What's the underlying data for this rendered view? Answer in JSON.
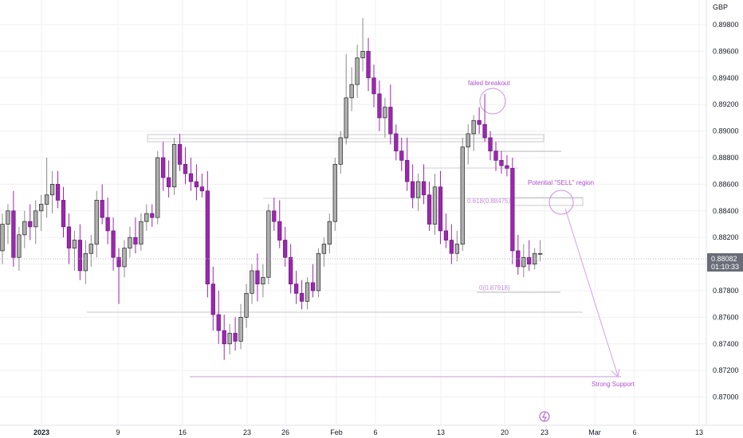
{
  "chart_data": {
    "type": "candlestick",
    "currency": "GBP",
    "ylim": [
      0.8693,
      0.9003
    ],
    "y_ticks": [
      "0.89800",
      "0.89600",
      "0.89400",
      "0.89200",
      "0.89000",
      "0.88800",
      "0.88600",
      "0.88400",
      "0.88200",
      "0.88000",
      "0.87800",
      "0.87600",
      "0.87400",
      "0.87200",
      "0.87000"
    ],
    "x_ticks": [
      "2023",
      "9",
      "16",
      "23",
      "26",
      "Feb",
      "6",
      "13",
      "20",
      "23",
      "Mar",
      "6",
      "13"
    ],
    "last_price": "0.88082",
    "countdown": "01:10:33",
    "colors": {
      "up": "#b0b0b0",
      "down": "#9c27b0",
      "annotation": "#b24fcf",
      "grid": "#f0f0f3"
    },
    "candles": [
      [
        0.881,
        0.8838,
        0.88,
        0.883
      ],
      [
        0.883,
        0.8845,
        0.8815,
        0.884
      ],
      [
        0.884,
        0.8855,
        0.8798,
        0.8805
      ],
      [
        0.8805,
        0.8828,
        0.8795,
        0.8822
      ],
      [
        0.8822,
        0.884,
        0.8812,
        0.8832
      ],
      [
        0.8832,
        0.8845,
        0.8818,
        0.8828
      ],
      [
        0.8828,
        0.8848,
        0.8815,
        0.884
      ],
      [
        0.884,
        0.8852,
        0.8825,
        0.8845
      ],
      [
        0.8845,
        0.888,
        0.8835,
        0.8852
      ],
      [
        0.8852,
        0.887,
        0.8838,
        0.886
      ],
      [
        0.886,
        0.887,
        0.8842,
        0.8848
      ],
      [
        0.8848,
        0.8858,
        0.882,
        0.8828
      ],
      [
        0.8828,
        0.8838,
        0.88,
        0.8812
      ],
      [
        0.8812,
        0.8825,
        0.8795,
        0.8818
      ],
      [
        0.8818,
        0.883,
        0.8788,
        0.8795
      ],
      [
        0.8795,
        0.8818,
        0.8785,
        0.8808
      ],
      [
        0.8808,
        0.8822,
        0.8798,
        0.8815
      ],
      [
        0.8815,
        0.8855,
        0.8805,
        0.8848
      ],
      [
        0.8848,
        0.886,
        0.883,
        0.8835
      ],
      [
        0.8835,
        0.885,
        0.8815,
        0.8825
      ],
      [
        0.8825,
        0.8835,
        0.8795,
        0.8805
      ],
      [
        0.8805,
        0.8812,
        0.877,
        0.8798
      ],
      [
        0.8798,
        0.8818,
        0.879,
        0.8812
      ],
      [
        0.8812,
        0.8828,
        0.8805,
        0.882
      ],
      [
        0.882,
        0.8835,
        0.8808,
        0.8815
      ],
      [
        0.8815,
        0.8838,
        0.881,
        0.8832
      ],
      [
        0.8832,
        0.8845,
        0.8825,
        0.8838
      ],
      [
        0.8838,
        0.8845,
        0.8828,
        0.8835
      ],
      [
        0.8835,
        0.8885,
        0.883,
        0.888
      ],
      [
        0.888,
        0.8892,
        0.8855,
        0.8865
      ],
      [
        0.8865,
        0.8878,
        0.885,
        0.8858
      ],
      [
        0.8858,
        0.8895,
        0.8852,
        0.889
      ],
      [
        0.889,
        0.8898,
        0.887,
        0.8875
      ],
      [
        0.8875,
        0.8888,
        0.886,
        0.8868
      ],
      [
        0.8868,
        0.888,
        0.8855,
        0.8862
      ],
      [
        0.8862,
        0.8875,
        0.8848,
        0.8858
      ],
      [
        0.8858,
        0.8868,
        0.885,
        0.8855
      ],
      [
        0.8855,
        0.887,
        0.8775,
        0.8785
      ],
      [
        0.8785,
        0.8798,
        0.875,
        0.8762
      ],
      [
        0.8762,
        0.878,
        0.874,
        0.875
      ],
      [
        0.875,
        0.8762,
        0.8728,
        0.874
      ],
      [
        0.874,
        0.8755,
        0.8732,
        0.8748
      ],
      [
        0.8748,
        0.876,
        0.8735,
        0.8742
      ],
      [
        0.8742,
        0.877,
        0.8736,
        0.876
      ],
      [
        0.876,
        0.8785,
        0.8752,
        0.8778
      ],
      [
        0.8778,
        0.88,
        0.877,
        0.8795
      ],
      [
        0.8795,
        0.8808,
        0.8772,
        0.8785
      ],
      [
        0.8785,
        0.88,
        0.8775,
        0.879
      ],
      [
        0.879,
        0.8845,
        0.8785,
        0.884
      ],
      [
        0.884,
        0.885,
        0.8825,
        0.8832
      ],
      [
        0.8832,
        0.8848,
        0.8812,
        0.8818
      ],
      [
        0.8818,
        0.8828,
        0.8798,
        0.8805
      ],
      [
        0.8805,
        0.8815,
        0.8778,
        0.8785
      ],
      [
        0.8785,
        0.8795,
        0.877,
        0.8778
      ],
      [
        0.8778,
        0.8788,
        0.8766,
        0.8772
      ],
      [
        0.8772,
        0.879,
        0.8766,
        0.8786
      ],
      [
        0.8786,
        0.88,
        0.8775,
        0.878
      ],
      [
        0.878,
        0.8812,
        0.8775,
        0.8808
      ],
      [
        0.8808,
        0.882,
        0.8798,
        0.8815
      ],
      [
        0.8815,
        0.8838,
        0.8808,
        0.8832
      ],
      [
        0.8832,
        0.888,
        0.8825,
        0.8875
      ],
      [
        0.8875,
        0.89,
        0.8868,
        0.8895
      ],
      [
        0.8895,
        0.8958,
        0.889,
        0.8925
      ],
      [
        0.8925,
        0.8948,
        0.8915,
        0.8935
      ],
      [
        0.8935,
        0.8965,
        0.8925,
        0.8955
      ],
      [
        0.8955,
        0.8985,
        0.8945,
        0.896
      ],
      [
        0.896,
        0.897,
        0.893,
        0.894
      ],
      [
        0.894,
        0.895,
        0.8918,
        0.8928
      ],
      [
        0.8928,
        0.8938,
        0.89,
        0.891
      ],
      [
        0.891,
        0.8925,
        0.8895,
        0.8918
      ],
      [
        0.8918,
        0.8935,
        0.889,
        0.8898
      ],
      [
        0.8898,
        0.8905,
        0.8878,
        0.8885
      ],
      [
        0.8885,
        0.8895,
        0.887,
        0.8878
      ],
      [
        0.8878,
        0.8895,
        0.8855,
        0.8862
      ],
      [
        0.8862,
        0.8875,
        0.8842,
        0.885
      ],
      [
        0.885,
        0.8868,
        0.884,
        0.8862
      ],
      [
        0.8862,
        0.8875,
        0.8845,
        0.8852
      ],
      [
        0.8852,
        0.8862,
        0.8825,
        0.883
      ],
      [
        0.883,
        0.8868,
        0.8822,
        0.8858
      ],
      [
        0.8858,
        0.887,
        0.8815,
        0.8825
      ],
      [
        0.8825,
        0.8838,
        0.8812,
        0.8818
      ],
      [
        0.8818,
        0.883,
        0.88,
        0.8808
      ],
      [
        0.8808,
        0.8825,
        0.8802,
        0.8815
      ],
      [
        0.8815,
        0.8895,
        0.881,
        0.8888
      ],
      [
        0.8888,
        0.8905,
        0.8875,
        0.8898
      ],
      [
        0.8898,
        0.8912,
        0.8885,
        0.8908
      ],
      [
        0.8908,
        0.8918,
        0.8898,
        0.8905
      ],
      [
        0.8905,
        0.8928,
        0.8892,
        0.8895
      ],
      [
        0.8895,
        0.89,
        0.8878,
        0.8885
      ],
      [
        0.8885,
        0.8892,
        0.887,
        0.8878
      ],
      [
        0.8878,
        0.8885,
        0.8868,
        0.8874
      ],
      [
        0.8874,
        0.8882,
        0.8866,
        0.8872
      ],
      [
        0.8872,
        0.888,
        0.88,
        0.881
      ],
      [
        0.881,
        0.8822,
        0.8792,
        0.8798
      ],
      [
        0.8798,
        0.8815,
        0.879,
        0.8805
      ],
      [
        0.8805,
        0.8818,
        0.8795,
        0.88
      ],
      [
        0.88,
        0.8812,
        0.8796,
        0.8808
      ],
      [
        0.8808,
        0.8818,
        0.8802,
        0.8808
      ]
    ],
    "annotations": {
      "failed_breakout": "failed breakout",
      "sell_region": "Potential \"SELL\" region",
      "fib_618": "0.618(0.88475)",
      "fib_0": "0(0.87918)",
      "strong_support": "Strong Support"
    }
  }
}
